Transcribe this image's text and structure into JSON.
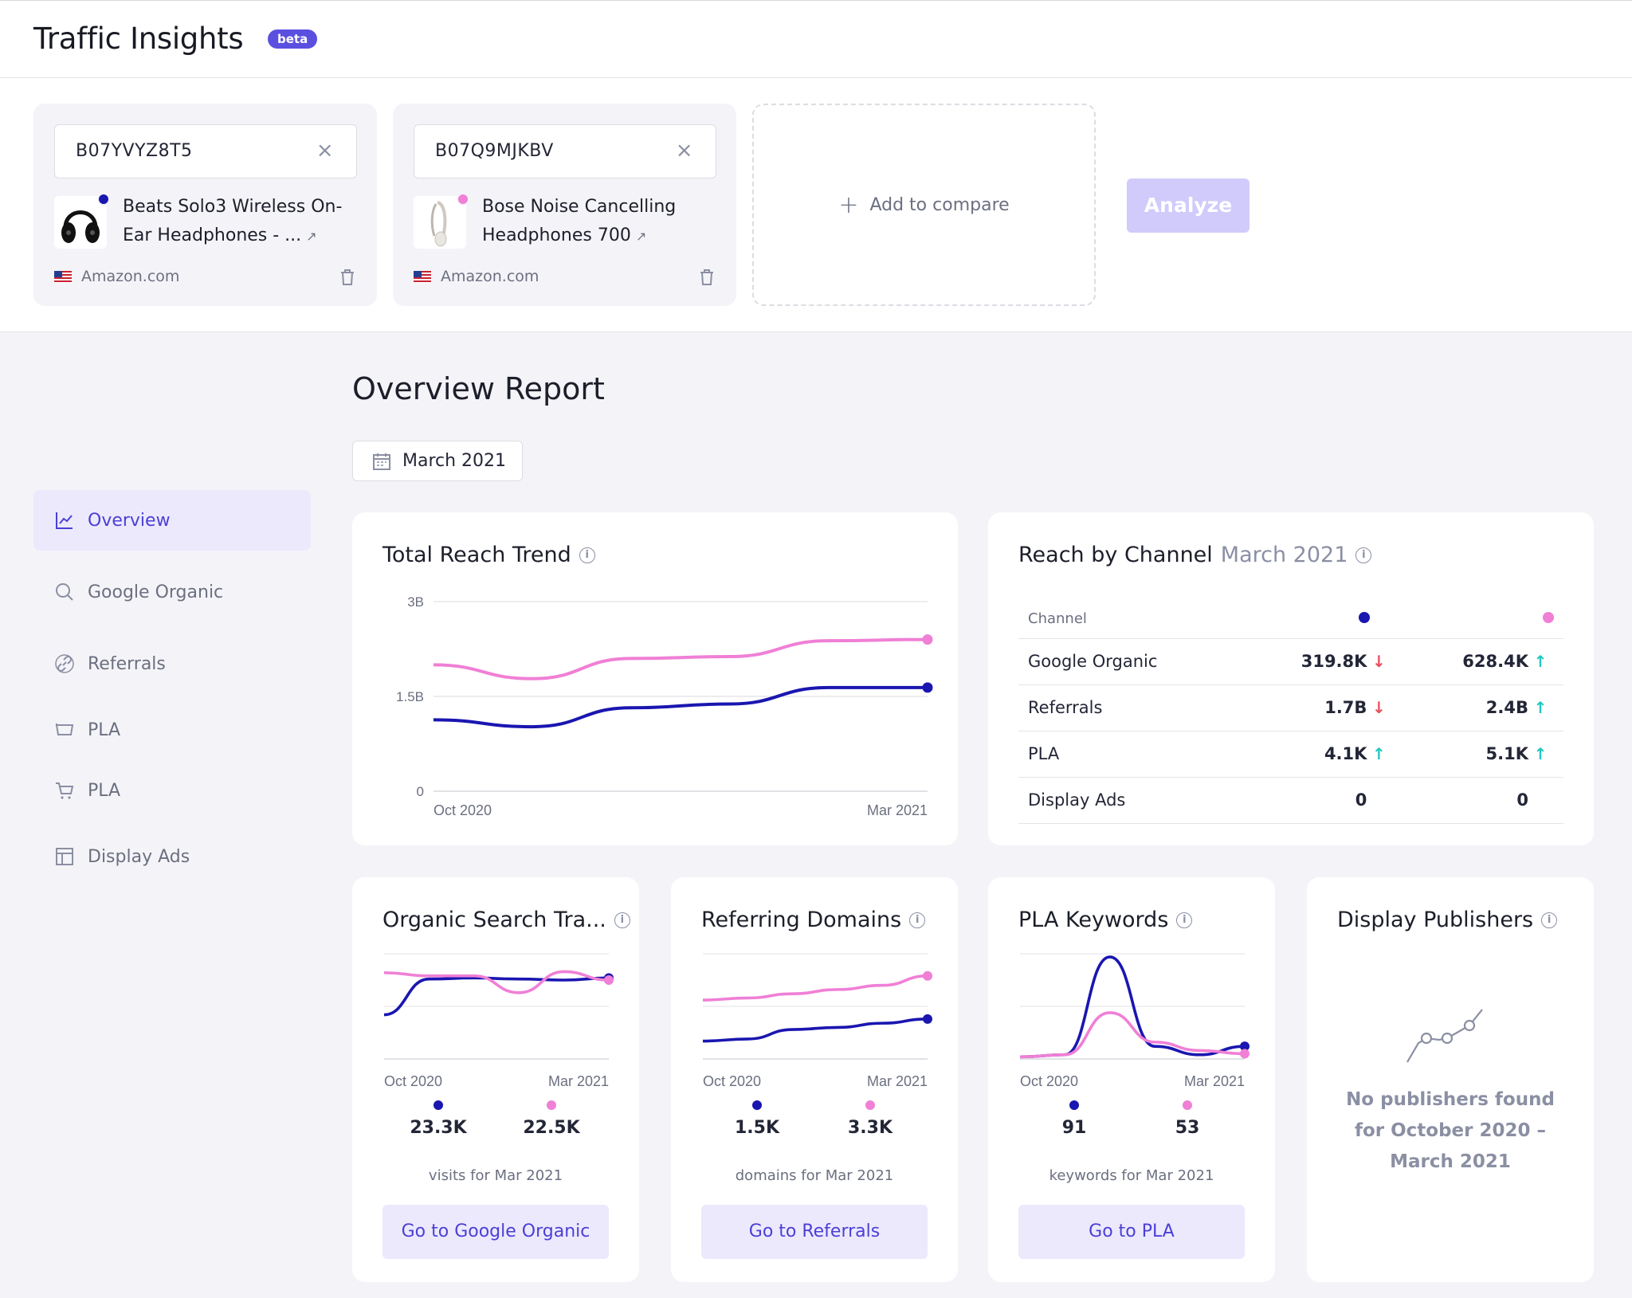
{
  "header": {
    "title": "Traffic Insights",
    "badge": "beta"
  },
  "compare": {
    "products": [
      {
        "asin": "B07YVYZ8T5",
        "name": "Beats Solo3 Wireless On-Ear Headphones - ...",
        "source": "Amazon.com",
        "color": "#1a16b0"
      },
      {
        "asin": "B07Q9MJKBV",
        "name": "Bose Noise Cancelling Headphones 700",
        "source": "Amazon.com",
        "color": "#f07fd6"
      }
    ],
    "add_label": "Add to compare",
    "analyze_label": "Analyze"
  },
  "sidebar": {
    "items": [
      {
        "label": "Overview",
        "icon": "chart-line-icon"
      },
      {
        "label": "Google Organic",
        "icon": "search-icon"
      },
      {
        "label": "Referrals",
        "icon": "link-icon"
      },
      {
        "label": "PLA",
        "icon": "basket-icon"
      },
      {
        "label": "PLA",
        "icon": "cart-icon"
      },
      {
        "label": "Display Ads",
        "icon": "layout-icon"
      }
    ]
  },
  "report": {
    "title": "Overview Report",
    "date": "March 2021"
  },
  "trend": {
    "title": "Total Reach Trend",
    "chart_data": {
      "type": "line",
      "x": [
        "Oct 2020",
        "Nov 2020",
        "Dec 2020",
        "Jan 2021",
        "Feb 2021",
        "Mar 2021"
      ],
      "xtick_labels": [
        "Oct 2020",
        "Mar 2021"
      ],
      "ytick_labels": [
        "3B",
        "1.5B",
        "0"
      ],
      "ylim": [
        0,
        3
      ],
      "series": [
        {
          "color": "#1a16b0",
          "values": [
            1.13,
            1.02,
            1.32,
            1.38,
            1.64,
            1.64
          ]
        },
        {
          "color": "#f07fd6",
          "values": [
            2.0,
            1.78,
            2.1,
            2.13,
            2.38,
            2.4
          ]
        }
      ]
    }
  },
  "channel": {
    "title": "Reach by Channel",
    "subtitle": "March 2021",
    "col_header": "Channel",
    "rows": [
      {
        "channel": "Google Organic",
        "a": "319.8K",
        "a_dir": "down",
        "b": "628.4K",
        "b_dir": "up"
      },
      {
        "channel": "Referrals",
        "a": "1.7B",
        "a_dir": "down",
        "b": "2.4B",
        "b_dir": "up"
      },
      {
        "channel": "PLA",
        "a": "4.1K",
        "a_dir": "up",
        "b": "5.1K",
        "b_dir": "up"
      },
      {
        "channel": "Display Ads",
        "a": "0",
        "a_dir": "",
        "b": "0",
        "b_dir": ""
      }
    ]
  },
  "organic": {
    "title": "Organic Search Tra...",
    "x_start": "Oct 2020",
    "x_end": "Mar 2021",
    "stat_a": "23.3K",
    "stat_b": "22.5K",
    "caption": "visits for Mar 2021",
    "button": "Go to Google Organic",
    "chart_data": {
      "type": "line",
      "x": [
        "Oct 2020",
        "Nov 2020",
        "Dec 2020",
        "Jan 2021",
        "Feb 2021",
        "Mar 2021"
      ],
      "series": [
        {
          "color": "#1a16b0",
          "values": [
            0.42,
            0.76,
            0.77,
            0.76,
            0.75,
            0.77
          ]
        },
        {
          "color": "#f07fd6",
          "values": [
            0.82,
            0.79,
            0.79,
            0.63,
            0.83,
            0.75
          ]
        }
      ]
    }
  },
  "referring": {
    "title": "Referring Domains",
    "x_start": "Oct 2020",
    "x_end": "Mar 2021",
    "stat_a": "1.5K",
    "stat_b": "3.3K",
    "caption": "domains for Mar 2021",
    "button": "Go to Referrals",
    "chart_data": {
      "type": "line",
      "x": [
        "Oct 2020",
        "Nov 2020",
        "Dec 2020",
        "Jan 2021",
        "Feb 2021",
        "Mar 2021"
      ],
      "series": [
        {
          "color": "#1a16b0",
          "values": [
            0.17,
            0.19,
            0.28,
            0.3,
            0.34,
            0.38
          ]
        },
        {
          "color": "#f07fd6",
          "values": [
            0.56,
            0.58,
            0.62,
            0.66,
            0.7,
            0.79
          ]
        }
      ]
    }
  },
  "pla": {
    "title": "PLA Keywords",
    "x_start": "Oct 2020",
    "x_end": "Mar 2021",
    "stat_a": "91",
    "stat_b": "53",
    "caption": "keywords for Mar 2021",
    "button": "Go to PLA",
    "chart_data": {
      "type": "line",
      "x": [
        "Oct 2020",
        "Nov 2020",
        "Dec 2020",
        "Jan 2021",
        "Feb 2021",
        "Mar 2021"
      ],
      "series": [
        {
          "color": "#1a16b0",
          "values": [
            0.02,
            0.04,
            0.97,
            0.12,
            0.04,
            0.12
          ]
        },
        {
          "color": "#f07fd6",
          "values": [
            0.02,
            0.04,
            0.44,
            0.16,
            0.08,
            0.05
          ]
        }
      ]
    }
  },
  "publishers": {
    "title": "Display Publishers",
    "empty_text": "No publishers found for October 2020 – March 2021"
  }
}
